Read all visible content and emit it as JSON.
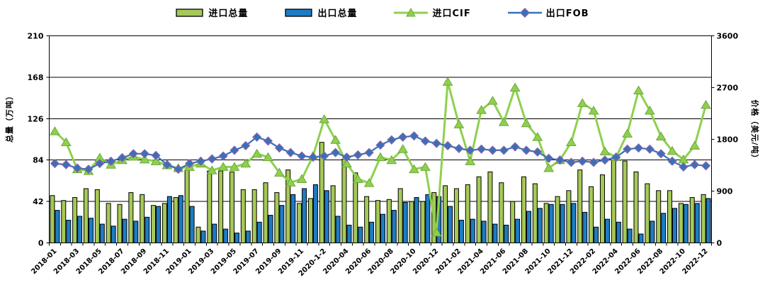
{
  "chart_data": {
    "type": "combo",
    "title": "",
    "legend_position": "top",
    "grid": "horizontal",
    "categories": [
      "2018-01",
      "2018-02",
      "2018-03",
      "2018-04",
      "2018-05",
      "2018-06",
      "2018-07",
      "2018-08",
      "2018-09",
      "2018-10",
      "2018-11",
      "2018-12",
      "2019-01",
      "2019-02",
      "2019-03",
      "2019-04",
      "2019-05",
      "2019-06",
      "2019-07",
      "2019-08",
      "2019-09",
      "2019-10",
      "2019-11",
      "2019-12",
      "2020-1-2",
      "2020-03",
      "2020-04",
      "2020-05",
      "2020-06",
      "2020-07",
      "2020-08",
      "2020-09",
      "2020-10",
      "2020-11",
      "2020-12",
      "2021-01",
      "2021-02",
      "2021-03",
      "2021-04",
      "2021-05",
      "2021-06",
      "2021-07",
      "2021-08",
      "2021-09",
      "2021-10",
      "2021-11",
      "2021-12",
      "2022-01",
      "2022-02",
      "2022-03",
      "2022-04",
      "2022-05",
      "2022-06",
      "2022-07",
      "2022-08",
      "2022-09",
      "2022-10",
      "2022-11",
      "2022-12"
    ],
    "x_tick_label_every": 2,
    "series": [
      {
        "name": "进口总量",
        "type": "bar",
        "axis": "left",
        "color": "#a5c957",
        "values": [
          48,
          43,
          46,
          55,
          54,
          40,
          39,
          51,
          49,
          38,
          40,
          46,
          74,
          16,
          73,
          73,
          72,
          54,
          54,
          61,
          51,
          74,
          40,
          45,
          102,
          58,
          85,
          71,
          47,
          43,
          44,
          55,
          42,
          42,
          51,
          58,
          55,
          59,
          67,
          72,
          61,
          42,
          67,
          60,
          40,
          47,
          53,
          74,
          57,
          69,
          84,
          83,
          72,
          60,
          53,
          53,
          40,
          46,
          49
        ]
      },
      {
        "name": "出口总量",
        "type": "bar",
        "axis": "left",
        "color": "#1d7cc4",
        "values": [
          33,
          23,
          27,
          25,
          19,
          17,
          24,
          22,
          26,
          37,
          47,
          48,
          37,
          12,
          19,
          14,
          10,
          12,
          21,
          28,
          38,
          49,
          55,
          59,
          53,
          27,
          18,
          16,
          21,
          29,
          33,
          41,
          46,
          49,
          47,
          37,
          23,
          24,
          22,
          19,
          18,
          24,
          32,
          35,
          39,
          39,
          40,
          31,
          16,
          24,
          21,
          14,
          9,
          22,
          30,
          35,
          39,
          40,
          45
        ]
      },
      {
        "name": "进口CIF",
        "type": "line",
        "axis": "right",
        "marker": "triangle",
        "color": "#8ed04e",
        "marker_stroke": "#6fa83a",
        "values": [
          1940,
          1750,
          1280,
          1250,
          1480,
          1360,
          1440,
          1500,
          1450,
          1420,
          1350,
          1300,
          1320,
          1380,
          1260,
          1320,
          1320,
          1380,
          1550,
          1490,
          1220,
          1050,
          1110,
          1510,
          2150,
          1790,
          1380,
          1110,
          1040,
          1490,
          1440,
          1630,
          1280,
          1320,
          180,
          2800,
          2060,
          1420,
          2310,
          2470,
          2100,
          2700,
          2080,
          1840,
          1300,
          1440,
          1750,
          2430,
          2300,
          1590,
          1490,
          1900,
          2650,
          2300,
          1850,
          1600,
          1450,
          1690,
          2400
        ]
      },
      {
        "name": "出口FOB",
        "type": "line",
        "axis": "right",
        "marker": "diamond",
        "color": "#3273b9",
        "marker_stroke": "#7e62ac",
        "values": [
          1380,
          1360,
          1300,
          1280,
          1380,
          1420,
          1480,
          1550,
          1550,
          1520,
          1360,
          1280,
          1380,
          1420,
          1460,
          1510,
          1610,
          1690,
          1840,
          1770,
          1650,
          1570,
          1510,
          1490,
          1510,
          1570,
          1490,
          1530,
          1570,
          1700,
          1790,
          1840,
          1860,
          1770,
          1730,
          1690,
          1640,
          1610,
          1630,
          1610,
          1610,
          1670,
          1610,
          1580,
          1470,
          1440,
          1400,
          1420,
          1400,
          1440,
          1490,
          1630,
          1650,
          1630,
          1550,
          1420,
          1320,
          1360,
          1340
        ]
      }
    ],
    "left_axis": {
      "title": "总量（万吨）",
      "min": 0,
      "max": 210,
      "ticks": [
        0,
        42,
        84,
        126,
        168,
        210
      ]
    },
    "right_axis": {
      "title": "价格（美元/吨）",
      "min": 0,
      "max": 3600,
      "ticks": [
        0,
        900,
        1800,
        2700,
        3600
      ]
    }
  }
}
